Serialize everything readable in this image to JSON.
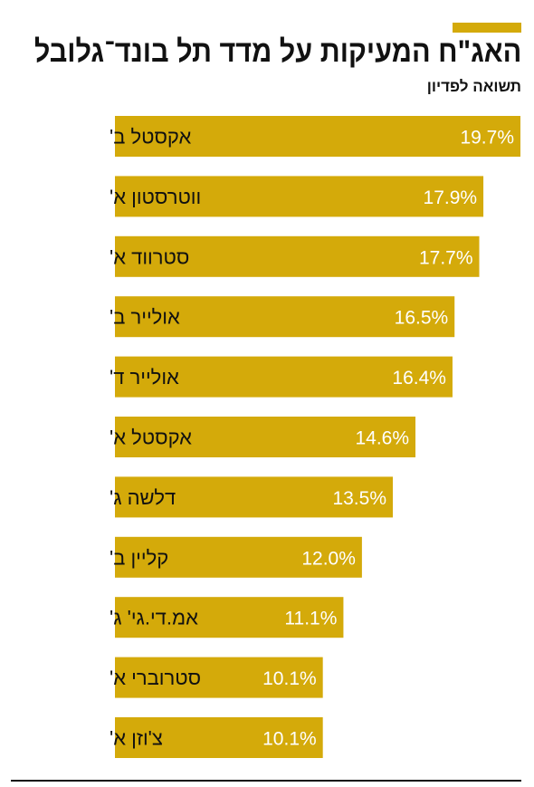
{
  "title": "האג\"ח המעיקות על מדד תל בונד־גלובל",
  "subtitle": "תשואה לפדיון",
  "colors": {
    "bar": "#D4AA0A",
    "text": "#111111",
    "value_text": "#FFFFFF"
  },
  "chart_data": {
    "type": "bar",
    "orientation": "horizontal",
    "categories": [
      "אקסטל ב'",
      "ווטרסטון א'",
      "סטרווד א'",
      "אולייר ב'",
      "אולייר ד'",
      "אקסטל א'",
      "דלשה ג'",
      "קליין ב'",
      "אמ.די.גי' ג'",
      "סטרוברי א'",
      "צ'וזן א'"
    ],
    "values": [
      19.7,
      17.9,
      17.7,
      16.5,
      16.4,
      14.6,
      13.5,
      12.0,
      11.1,
      10.1,
      10.1
    ],
    "value_labels": [
      "19.7%",
      "17.9%",
      "17.7%",
      "16.5%",
      "16.4%",
      "14.6%",
      "13.5%",
      "12.0%",
      "11.1%",
      "10.1%",
      "10.1%"
    ],
    "title": "האג\"ח המעיקות על מדד תל בונד־גלובל",
    "subtitle": "תשואה לפדיון",
    "xlabel": "",
    "ylabel": "",
    "xlim": [
      0,
      19.7
    ],
    "grid": false
  }
}
